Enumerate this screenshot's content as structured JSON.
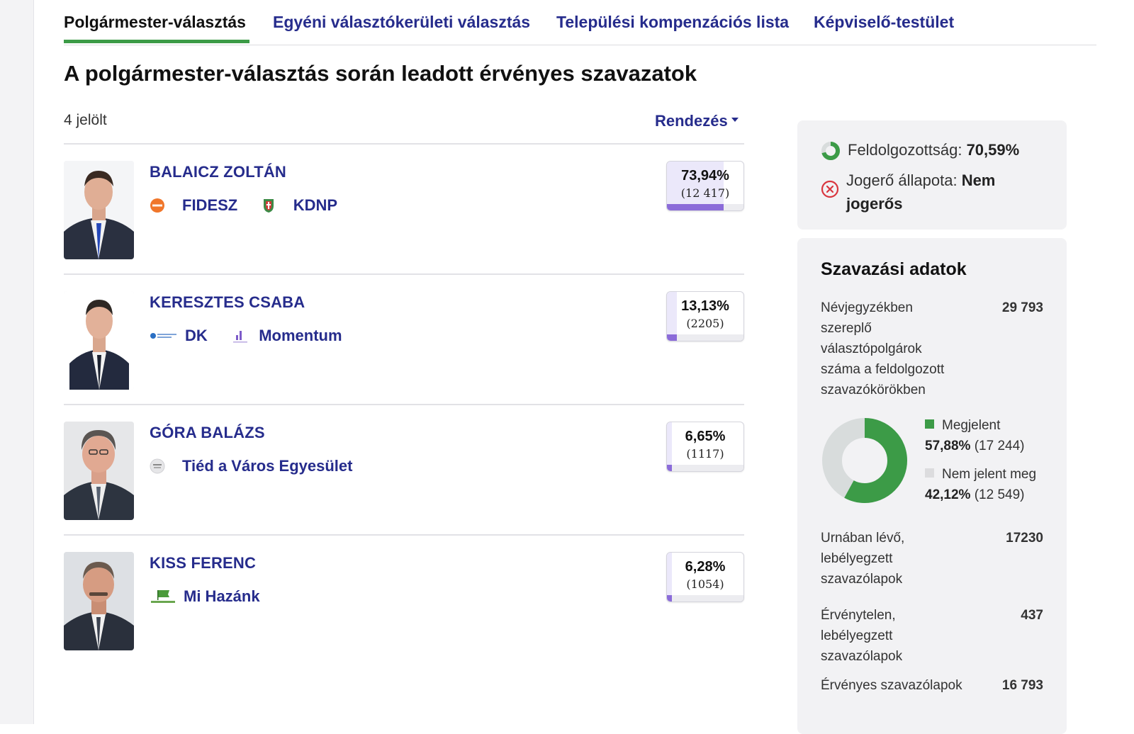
{
  "tabs": [
    {
      "label": "Polgármester-választás",
      "active": true
    },
    {
      "label": "Egyéni választókerületi választás",
      "active": false
    },
    {
      "label": "Települési kompenzációs lista",
      "active": false
    },
    {
      "label": "Képviselő-testület",
      "active": false
    }
  ],
  "page_title": "A polgármester-választás során leadott érvényes szavazatok",
  "candidate_count": "4 jelölt",
  "sort_label": "Rendezés",
  "candidates": [
    {
      "name": "BALAICZ ZOLTÁN",
      "percent": "73,94%",
      "votes": "(12 417)",
      "share": 0.7394,
      "parties": [
        {
          "name": "FIDESZ",
          "logo": "fidesz-logo"
        },
        {
          "name": "KDNP",
          "logo": "kdnp-logo"
        }
      ]
    },
    {
      "name": "KERESZTES CSABA",
      "percent": "13,13%",
      "votes": "(2205)",
      "share": 0.1313,
      "parties": [
        {
          "name": "DK",
          "logo": "dk-logo"
        },
        {
          "name": "Momentum",
          "logo": "momentum-logo"
        }
      ]
    },
    {
      "name": "GÓRA BALÁZS",
      "percent": "6,65%",
      "votes": "(1117)",
      "share": 0.0665,
      "parties": [
        {
          "name": "Tiéd a Város Egyesület",
          "logo": "tied-a-varos-logo"
        }
      ]
    },
    {
      "name": "KISS FERENC",
      "percent": "6,28%",
      "votes": "(1054)",
      "share": 0.0628,
      "parties": [
        {
          "name": "Mi Hazánk",
          "logo": "mi-hazank-logo"
        }
      ]
    }
  ],
  "status": {
    "processed_label": "Feldolgozottság:",
    "processed_value": "70,59%",
    "processed_fraction": 0.7059,
    "legal_label": "Jogerő állapota:",
    "legal_value_line1": "Nem",
    "legal_value_line2": "jogerős"
  },
  "voting": {
    "title": "Szavazási adatok",
    "registered_label": "Névjegyzékben szereplő választópolgárok száma a feldolgozott szavazókörökben",
    "registered_value": "29 793",
    "appeared_label": "Megjelent",
    "appeared_pct": "57,88%",
    "appeared_count": "(17 244)",
    "appeared_fraction": 0.5788,
    "not_appeared_label": "Nem jelent meg",
    "not_appeared_pct": "42,12%",
    "not_appeared_count": "(12 549)",
    "ballots_in_urn_label": "Urnában lévő, lebélyegzett szavazólapok",
    "ballots_in_urn_value": "17230",
    "invalid_label": "Érvénytelen, lebélyegzett szavazólapok",
    "invalid_value": "437",
    "valid_label": "Érvényes szavazólapok",
    "valid_value": "16 793"
  },
  "colors": {
    "link": "#262c8c",
    "green": "#3c9b47",
    "purple_bar": "#8b6bd9",
    "grey_segment": "#d8dcdc",
    "error_red": "#d9363e"
  }
}
